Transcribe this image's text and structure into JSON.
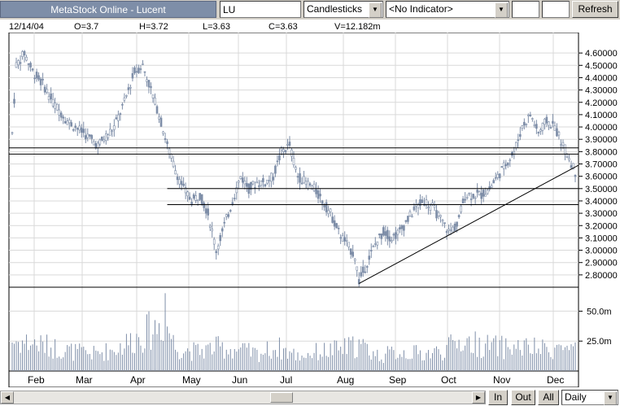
{
  "window": {
    "title": "MetaStock Online - Lucent"
  },
  "toolbar": {
    "symbol_value": "LU",
    "chart_type": "Candlesticks",
    "indicator": "<No Indicator>",
    "box1_value": "",
    "box2_value": "",
    "refresh_label": "Refresh"
  },
  "quote": {
    "date": "12/14/04",
    "open": "O=3.7",
    "high": "H=3.72",
    "low": "L=3.63",
    "close": "C=3.63",
    "volume": "V=12.182m"
  },
  "colors": {
    "candle": "#7e8ea8",
    "line": "#000000",
    "grid": "#d9d9d9"
  },
  "bottom": {
    "in_label": "In",
    "out_label": "Out",
    "all_label": "All",
    "period_value": "Daily"
  },
  "chart_data": {
    "type": "candlestick",
    "price_axis": {
      "ticks": [
        "4.60000",
        "4.50000",
        "4.40000",
        "4.30000",
        "4.20000",
        "4.10000",
        "4.00000",
        "3.90000",
        "3.80000",
        "3.70000",
        "3.60000",
        "3.50000",
        "3.40000",
        "3.30000",
        "3.20000",
        "3.10000",
        "3.00000",
        "2.90000",
        "2.80000"
      ],
      "ylim": [
        2.7,
        4.7
      ]
    },
    "volume_axis": {
      "ticks": [
        "50.0m",
        "25.0m"
      ],
      "ylim": [
        0,
        70
      ]
    },
    "months": [
      "Feb",
      "Mar",
      "Apr",
      "May",
      "Jun",
      "Jul",
      "Aug",
      "Sep",
      "Oct",
      "Nov",
      "Dec"
    ],
    "price_path": [
      [
        0,
        3.95
      ],
      [
        2,
        4.5
      ],
      [
        6,
        4.6
      ],
      [
        10,
        4.45
      ],
      [
        15,
        4.35
      ],
      [
        20,
        4.2
      ],
      [
        27,
        4.05
      ],
      [
        35,
        3.95
      ],
      [
        42,
        3.85
      ],
      [
        50,
        4.0
      ],
      [
        55,
        4.2
      ],
      [
        60,
        4.45
      ],
      [
        64,
        4.5
      ],
      [
        68,
        4.3
      ],
      [
        72,
        4.1
      ],
      [
        76,
        3.85
      ],
      [
        80,
        3.65
      ],
      [
        84,
        3.5
      ],
      [
        88,
        3.4
      ],
      [
        92,
        3.45
      ],
      [
        96,
        3.3
      ],
      [
        100,
        3.0
      ],
      [
        104,
        3.2
      ],
      [
        108,
        3.4
      ],
      [
        112,
        3.6
      ],
      [
        116,
        3.5
      ],
      [
        120,
        3.55
      ],
      [
        124,
        3.55
      ],
      [
        128,
        3.6
      ],
      [
        132,
        3.8
      ],
      [
        136,
        3.85
      ],
      [
        140,
        3.6
      ],
      [
        144,
        3.55
      ],
      [
        148,
        3.5
      ],
      [
        152,
        3.4
      ],
      [
        156,
        3.3
      ],
      [
        160,
        3.15
      ],
      [
        164,
        3.05
      ],
      [
        168,
        2.95
      ],
      [
        170,
        2.75
      ],
      [
        174,
        2.9
      ],
      [
        178,
        3.05
      ],
      [
        182,
        3.15
      ],
      [
        186,
        3.1
      ],
      [
        190,
        3.15
      ],
      [
        194,
        3.25
      ],
      [
        198,
        3.35
      ],
      [
        202,
        3.4
      ],
      [
        206,
        3.35
      ],
      [
        210,
        3.25
      ],
      [
        214,
        3.15
      ],
      [
        218,
        3.2
      ],
      [
        222,
        3.45
      ],
      [
        226,
        3.45
      ],
      [
        230,
        3.45
      ],
      [
        234,
        3.5
      ],
      [
        238,
        3.6
      ],
      [
        242,
        3.7
      ],
      [
        246,
        3.8
      ],
      [
        250,
        4.0
      ],
      [
        254,
        4.1
      ],
      [
        258,
        3.95
      ],
      [
        262,
        4.05
      ],
      [
        266,
        4.0
      ],
      [
        270,
        3.85
      ],
      [
        273,
        3.75
      ],
      [
        276,
        3.63
      ]
    ],
    "horizontal_lines": [
      {
        "value": 3.83,
        "from": 0,
        "to": 276
      },
      {
        "value": 3.78,
        "from": 0,
        "to": 276
      },
      {
        "value": 3.5,
        "from": 76,
        "to": 276
      },
      {
        "value": 3.37,
        "from": 76,
        "to": 276
      }
    ],
    "trendline": {
      "from": [
        170,
        2.73
      ],
      "to": [
        276,
        3.69
      ]
    },
    "volume_profile": [
      [
        0,
        28
      ],
      [
        10,
        26
      ],
      [
        20,
        22
      ],
      [
        30,
        18
      ],
      [
        40,
        16
      ],
      [
        50,
        20
      ],
      [
        60,
        30
      ],
      [
        70,
        40
      ],
      [
        75,
        48
      ],
      [
        80,
        22
      ],
      [
        90,
        18
      ],
      [
        100,
        22
      ],
      [
        110,
        20
      ],
      [
        120,
        16
      ],
      [
        130,
        22
      ],
      [
        140,
        14
      ],
      [
        150,
        18
      ],
      [
        160,
        20
      ],
      [
        170,
        24
      ],
      [
        180,
        14
      ],
      [
        190,
        18
      ],
      [
        200,
        16
      ],
      [
        210,
        18
      ],
      [
        220,
        28
      ],
      [
        230,
        24
      ],
      [
        240,
        22
      ],
      [
        250,
        22
      ],
      [
        260,
        20
      ],
      [
        270,
        22
      ],
      [
        276,
        18
      ]
    ]
  }
}
